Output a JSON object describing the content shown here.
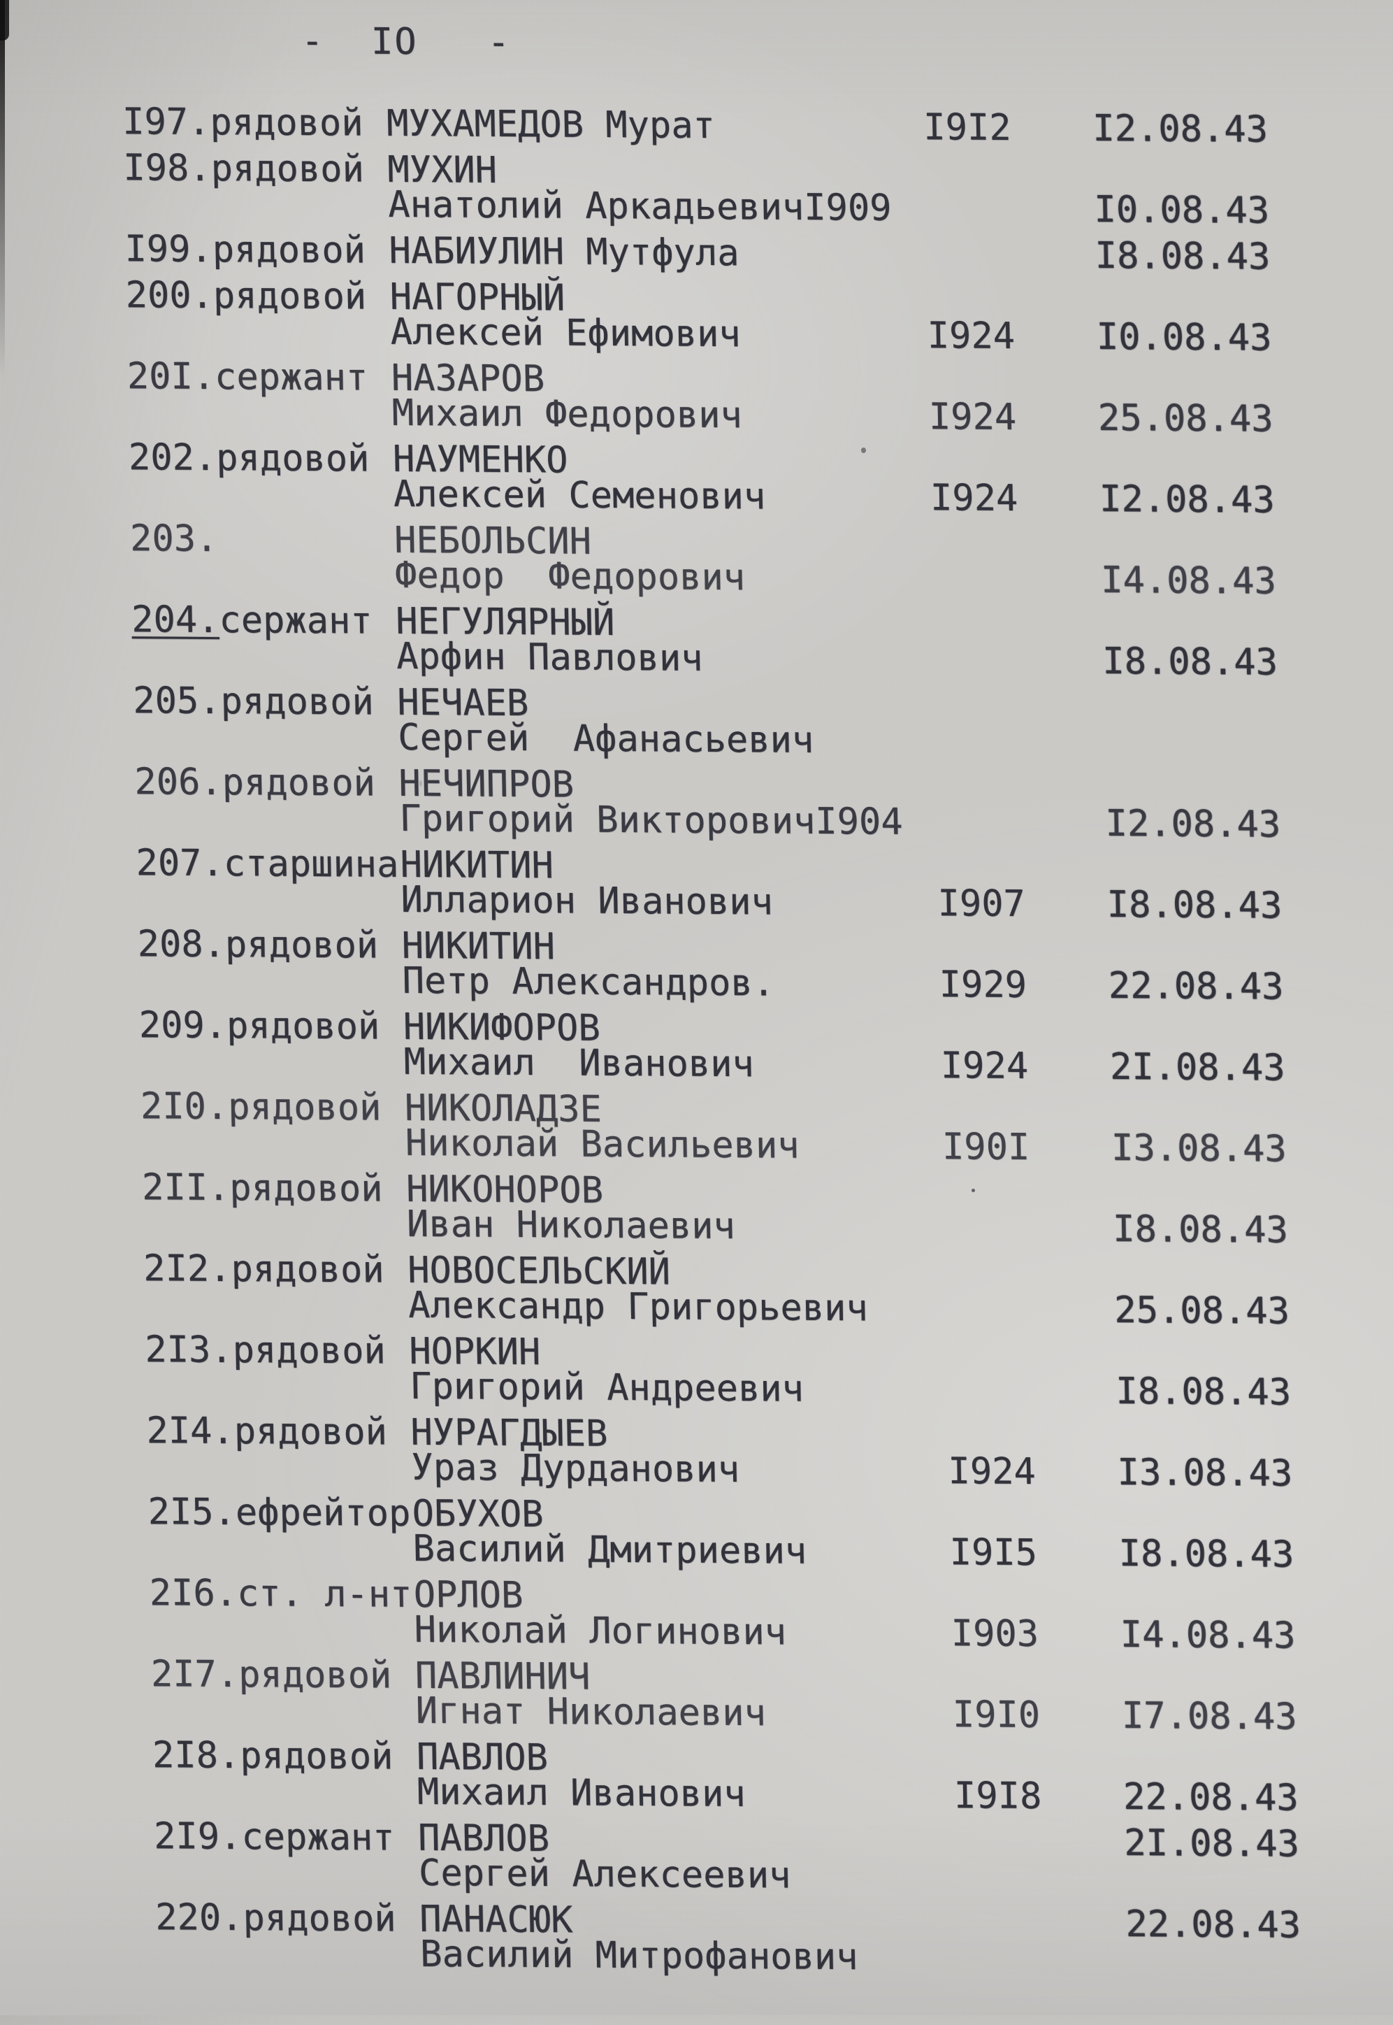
{
  "page": {
    "header": "-  IO   -"
  },
  "colors": {
    "paper": "#d3d2cf",
    "ink": "#32323b"
  },
  "entries": [
    {
      "num": "I97.",
      "rank": "рядовой",
      "line1": "МУХАМЕДОВ Мурат",
      "line2": "",
      "year": "I9I2",
      "date": "I2.08.43",
      "vline": 1
    },
    {
      "num": "I98.",
      "rank": "рядовой",
      "line1": "МУХИН",
      "line2": "Анатолий Аркадьевич",
      "year": "I909",
      "year_jammed": true,
      "date": "I0.08.43",
      "vline": 2
    },
    {
      "num": "I99.",
      "rank": "рядовой",
      "line1": "НАБИУЛИН Мутфула",
      "line2": "",
      "year": "",
      "date": "I8.08.43",
      "vline": 1
    },
    {
      "num": "200.",
      "rank": "рядовой",
      "line1": "НАГОРНЫЙ",
      "line2": "Алексей Ефимович",
      "year": "I924",
      "date": "I0.08.43",
      "vline": 2
    },
    {
      "num": "20I.",
      "rank": "сержант",
      "line1": "НАЗАРОВ",
      "line2": "Михаил Федорович",
      "year": "I924",
      "date": "25.08.43",
      "vline": 2
    },
    {
      "num": "202.",
      "rank": "рядовой",
      "line1": "НАУМЕНКО",
      "line2": "Алексей Семенович",
      "year": "I924",
      "date": "I2.08.43",
      "vline": 2
    },
    {
      "num": "203.",
      "rank": "",
      "line1": "НЕБОЛЬСИН",
      "line2": "Федор  Федорович",
      "year": "",
      "date": "I4.08.43",
      "vline": 2
    },
    {
      "num": "204.",
      "rank": "сержант",
      "line1": "НЕГУЛЯРНЫЙ",
      "line2": "Арфин Павлович",
      "year": "",
      "date": "I8.08.43",
      "vline": 2,
      "num_underlined": true
    },
    {
      "num": "205.",
      "rank": "рядовой",
      "line1": "НЕЧАЕВ",
      "line2": "Сергей  Афанасьевич",
      "year": "",
      "date": "",
      "vline": 2
    },
    {
      "num": "206.",
      "rank": "рядовой",
      "line1": "НЕЧИПРОВ",
      "line2": "Григорий Викторович",
      "year": "I904",
      "year_jammed": true,
      "date": "I2.08.43",
      "vline": 2
    },
    {
      "num": "207.",
      "rank": "старшина",
      "line1": "НИКИТИН",
      "line2": "Илларион Иванович",
      "year": "I907",
      "date": "I8.08.43",
      "vline": 2
    },
    {
      "num": "208.",
      "rank": "рядовой",
      "line1": "НИКИТИН",
      "line2": "Петр Александров.",
      "year": "I929",
      "date": "22.08.43",
      "vline": 2
    },
    {
      "num": "209.",
      "rank": "рядовой",
      "line1": "НИКИФОРОВ",
      "line2": "Михаил  Иванович",
      "year": "I924",
      "date": "2I.08.43",
      "vline": 2
    },
    {
      "num": "2I0.",
      "rank": "рядовой",
      "line1": "НИКОЛАДЗЕ",
      "line2": "Николай Васильевич",
      "year": "I90I",
      "date": "I3.08.43",
      "vline": 2
    },
    {
      "num": "2II.",
      "rank": "рядовой",
      "line1": "НИКОНОРОВ",
      "line2": "Иван Николаевич",
      "year": "",
      "date": "I8.08.43",
      "vline": 2
    },
    {
      "num": "2I2.",
      "rank": "рядовой",
      "line1": "НОВОСЕЛЬСКИЙ",
      "line2": "Александр Григорьевич",
      "year": "",
      "date": "25.08.43",
      "vline": 2
    },
    {
      "num": "2I3.",
      "rank": "рядовой",
      "line1": "НОРКИН",
      "line2": "Григорий Андреевич",
      "year": "",
      "date": "I8.08.43",
      "vline": 2
    },
    {
      "num": "2I4.",
      "rank": "рядовой",
      "line1": "НУРАГДЫЕВ",
      "line2": "Ураз Дурданович",
      "year": "I924",
      "date": "I3.08.43",
      "vline": 2
    },
    {
      "num": "2I5.",
      "rank": "ефрейтор",
      "line1": "ОБУХОВ",
      "line2": "Василий Дмитриевич",
      "year": "I9I5",
      "date": "I8.08.43",
      "vline": 2
    },
    {
      "num": "2I6.",
      "rank": "ст. л-нт",
      "line1": "ОРЛОВ",
      "line2": "Николай Логинович",
      "year": "I903",
      "date": "I4.08.43",
      "vline": 2
    },
    {
      "num": "2I7.",
      "rank": "рядовой",
      "line1": "ПАВЛИНИЧ",
      "line2": "Игнат Николаевич",
      "year": "I9I0",
      "date": "I7.08.43",
      "vline": 2
    },
    {
      "num": "2I8.",
      "rank": "рядовой",
      "line1": "ПАВЛОВ",
      "line2": "Михаил Иванович",
      "year": "I9I8",
      "date": "22.08.43",
      "vline": 2
    },
    {
      "num": "2I9.",
      "rank": "сержант",
      "line1": "ПАВЛОВ",
      "line2": "Сергей Алексеевич",
      "year": "",
      "date": "2I.08.43",
      "vline": 1
    },
    {
      "num": "220.",
      "rank": "рядовой",
      "line1": "ПАНАСЮК",
      "line2": "Василий Митрофанович",
      "year": "",
      "date": "22.08.43",
      "vline": 1
    }
  ]
}
